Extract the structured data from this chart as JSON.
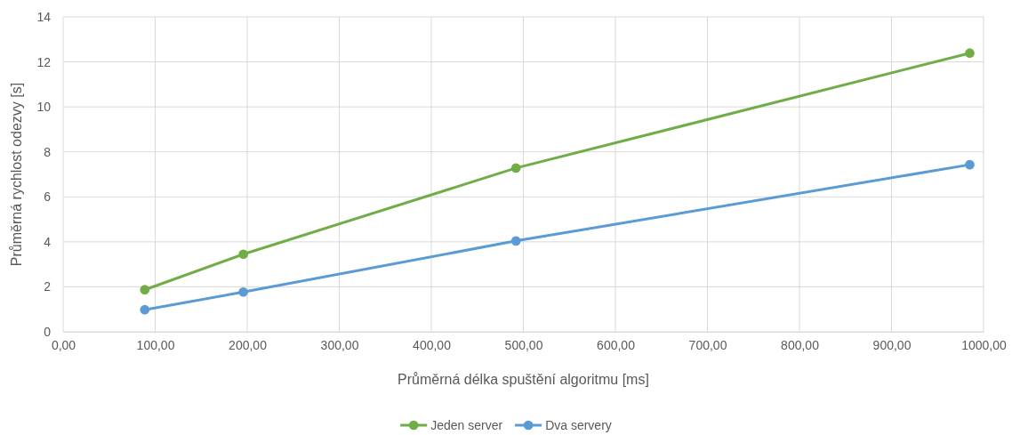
{
  "chart_data": {
    "type": "line",
    "xlabel": "Průměrná délka spuštění algoritmu [ms]",
    "ylabel": "Průměrná rychlost odezvy [s]",
    "x": [
      88.7,
      195.8,
      492,
      985
    ],
    "series": [
      {
        "name": "Jeden server",
        "color": "#70ad47",
        "values": [
          1.87,
          3.45,
          7.28,
          12.39
        ]
      },
      {
        "name": "Dva servery",
        "color": "#5b9bd5",
        "values": [
          0.98,
          1.77,
          4.04,
          7.43
        ]
      }
    ],
    "xlim": [
      0,
      1000
    ],
    "xticks": [
      {
        "value": 0,
        "label": "0,00"
      },
      {
        "value": 100,
        "label": "100,00"
      },
      {
        "value": 200,
        "label": "200,00"
      },
      {
        "value": 300,
        "label": "300,00"
      },
      {
        "value": 400,
        "label": "400,00"
      },
      {
        "value": 500,
        "label": "500,00"
      },
      {
        "value": 600,
        "label": "600,00"
      },
      {
        "value": 700,
        "label": "700,00"
      },
      {
        "value": 800,
        "label": "800,00"
      },
      {
        "value": 900,
        "label": "900,00"
      },
      {
        "value": 1000,
        "label": "1000,00"
      }
    ],
    "ylim": [
      0,
      14
    ],
    "yticks": [
      0,
      2,
      4,
      6,
      8,
      10,
      12,
      14
    ],
    "grid": true,
    "legend": "bottom",
    "marker": "circle",
    "line_style": "solid"
  }
}
